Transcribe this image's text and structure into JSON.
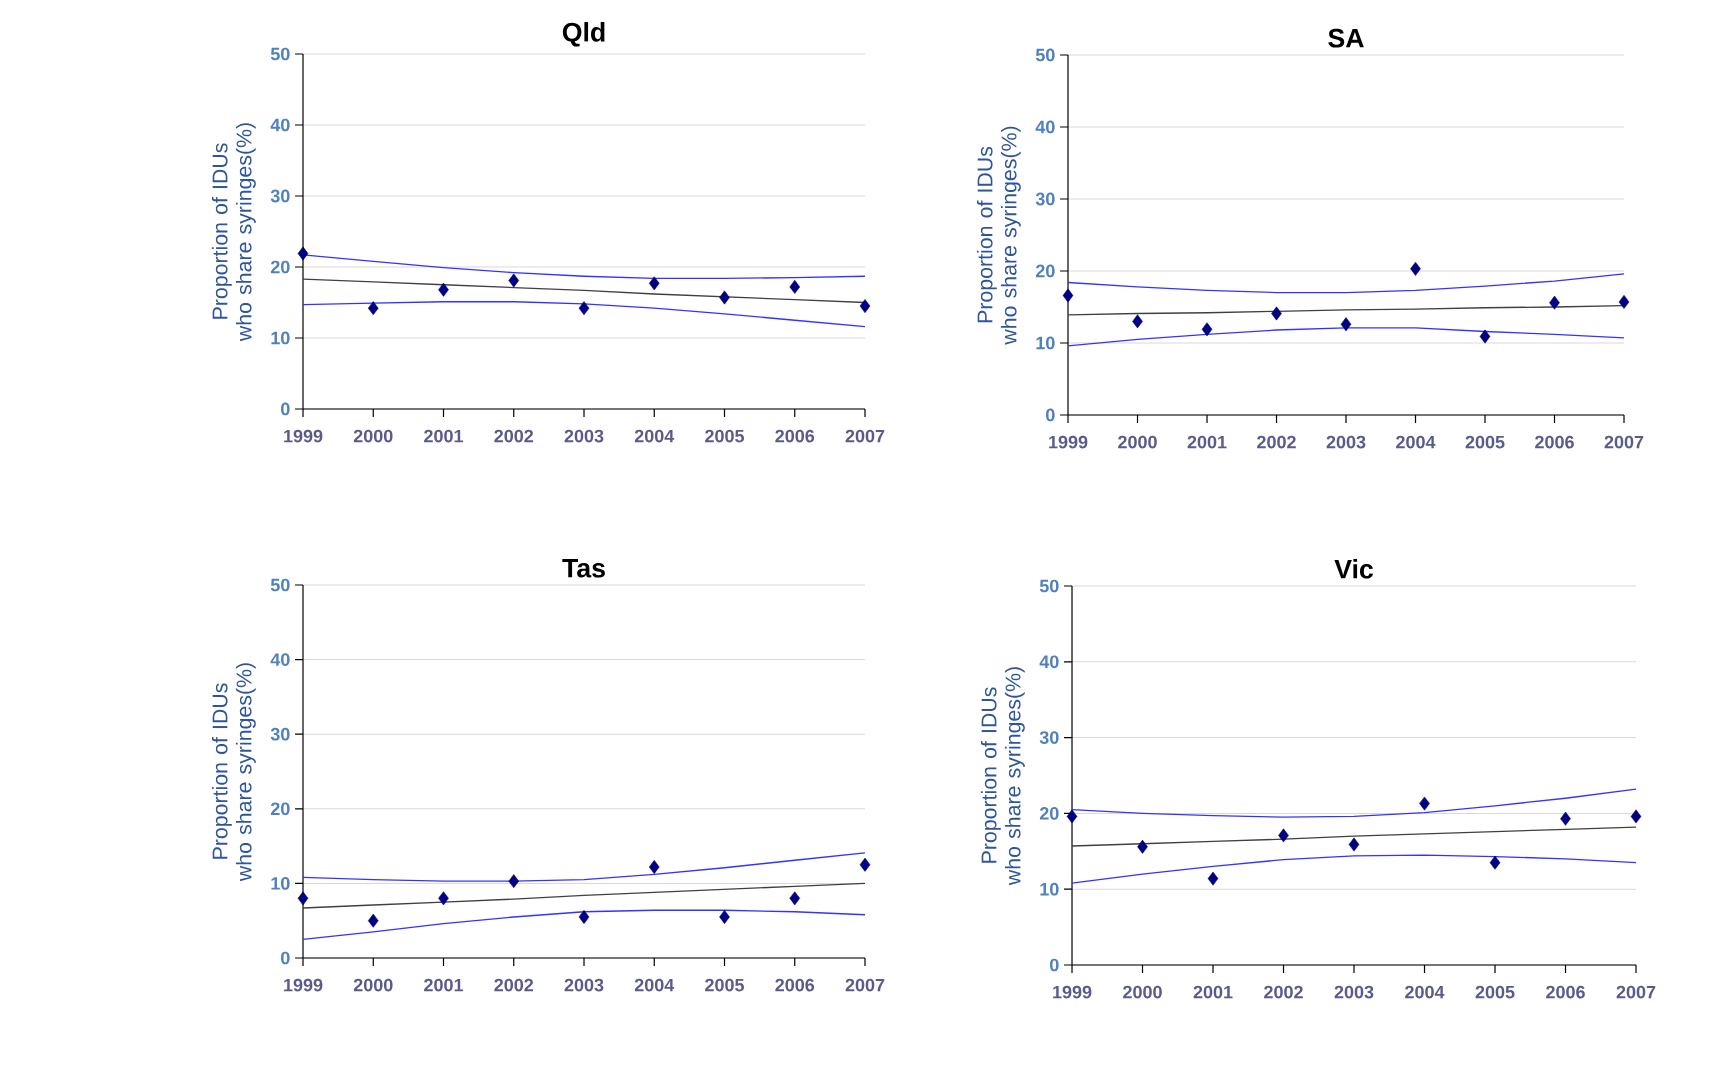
{
  "chart_data": [
    {
      "type": "scatter",
      "title": "Qld",
      "ylabel": "Proportion of IDUs who share syringes(%)",
      "x": [
        1999,
        2000,
        2001,
        2002,
        2003,
        2004,
        2005,
        2006,
        2007
      ],
      "xlim": [
        1999,
        2007
      ],
      "xticks": [
        1999,
        2000,
        2001,
        2002,
        2003,
        2004,
        2005,
        2006,
        2007
      ],
      "ylim": [
        0,
        50
      ],
      "yticks": [
        0,
        10,
        20,
        30,
        40,
        50
      ],
      "grid": "y",
      "marker": "diamond",
      "series": [
        {
          "color": "#000080",
          "values": [
            21.9,
            14.2,
            16.8,
            18.1,
            14.2,
            17.7,
            15.7,
            17.2,
            14.5
          ]
        },
        {
          "type": "line",
          "color": "#404040",
          "marker": "none",
          "values": [
            18.3,
            17.9,
            17.5,
            17.1,
            16.7,
            16.2,
            15.8,
            15.4,
            15.0
          ]
        },
        {
          "type": "line",
          "color": "#3333ff",
          "marker": "none",
          "values": [
            21.7,
            20.8,
            19.9,
            19.2,
            18.7,
            18.4,
            18.4,
            18.5,
            18.7
          ]
        },
        {
          "type": "line",
          "color": "#3333ff",
          "marker": "none",
          "values": [
            14.7,
            14.9,
            15.1,
            15.1,
            14.8,
            14.2,
            13.4,
            12.5,
            11.6
          ]
        }
      ]
    },
    {
      "type": "scatter",
      "title": "SA",
      "ylabel": "Proportion of IDUs who share syringes(%)",
      "x": [
        1999,
        2000,
        2001,
        2002,
        2003,
        2004,
        2005,
        2006,
        2007
      ],
      "xlim": [
        1999,
        2007
      ],
      "xticks": [
        1999,
        2000,
        2001,
        2002,
        2003,
        2004,
        2005,
        2006,
        2007
      ],
      "ylim": [
        0,
        50
      ],
      "yticks": [
        0,
        10,
        20,
        30,
        40,
        50
      ],
      "grid": "y",
      "marker": "diamond",
      "series": [
        {
          "color": "#000080",
          "values": [
            16.6,
            13.0,
            11.9,
            14.1,
            12.6,
            20.3,
            10.9,
            15.6,
            15.7
          ]
        },
        {
          "type": "line",
          "color": "#404040",
          "marker": "none",
          "values": [
            13.9,
            14.1,
            14.2,
            14.4,
            14.6,
            14.7,
            14.9,
            15.0,
            15.2
          ]
        },
        {
          "type": "line",
          "color": "#3333ff",
          "marker": "none",
          "values": [
            18.4,
            17.8,
            17.3,
            17.0,
            17.0,
            17.3,
            17.9,
            18.6,
            19.6
          ]
        },
        {
          "type": "line",
          "color": "#3333ff",
          "marker": "none",
          "values": [
            9.6,
            10.5,
            11.2,
            11.8,
            12.1,
            12.1,
            11.6,
            11.2,
            10.7
          ]
        }
      ]
    },
    {
      "type": "scatter",
      "title": "Tas",
      "ylabel": "Proportion of IDUs who share syringes(%)",
      "x": [
        1999,
        2000,
        2001,
        2002,
        2003,
        2004,
        2005,
        2006,
        2007
      ],
      "xlim": [
        1999,
        2007
      ],
      "xticks": [
        1999,
        2000,
        2001,
        2002,
        2003,
        2004,
        2005,
        2006,
        2007
      ],
      "ylim": [
        0,
        50
      ],
      "yticks": [
        0,
        10,
        20,
        30,
        40,
        50
      ],
      "grid": "y",
      "marker": "diamond",
      "series": [
        {
          "color": "#000080",
          "values": [
            8.0,
            5.0,
            8.0,
            10.3,
            5.5,
            12.2,
            5.5,
            8.0,
            12.5
          ]
        },
        {
          "type": "line",
          "color": "#404040",
          "marker": "none",
          "values": [
            6.7,
            7.1,
            7.5,
            7.9,
            8.4,
            8.8,
            9.2,
            9.6,
            10.0
          ]
        },
        {
          "type": "line",
          "color": "#3333ff",
          "marker": "none",
          "values": [
            10.8,
            10.5,
            10.3,
            10.3,
            10.5,
            11.2,
            12.1,
            13.1,
            14.1
          ]
        },
        {
          "type": "line",
          "color": "#3333ff",
          "marker": "none",
          "values": [
            2.5,
            3.5,
            4.6,
            5.5,
            6.2,
            6.4,
            6.4,
            6.2,
            5.8
          ]
        }
      ]
    },
    {
      "type": "scatter",
      "title": "Vic",
      "ylabel": "Proportion of IDUs who share syringes(%)",
      "x": [
        1999,
        2000,
        2001,
        2002,
        2003,
        2004,
        2005,
        2006,
        2007
      ],
      "xlim": [
        1999,
        2007
      ],
      "xticks": [
        1999,
        2000,
        2001,
        2002,
        2003,
        2004,
        2005,
        2006,
        2007
      ],
      "ylim": [
        0,
        50
      ],
      "yticks": [
        0,
        10,
        20,
        30,
        40,
        50
      ],
      "grid": "y",
      "marker": "diamond",
      "series": [
        {
          "color": "#000080",
          "values": [
            19.6,
            15.6,
            11.4,
            17.1,
            15.9,
            21.3,
            13.5,
            19.3,
            19.6
          ]
        },
        {
          "type": "line",
          "color": "#404040",
          "marker": "none",
          "values": [
            15.7,
            16.0,
            16.3,
            16.6,
            17.0,
            17.3,
            17.6,
            17.9,
            18.2
          ]
        },
        {
          "type": "line",
          "color": "#3333ff",
          "marker": "none",
          "values": [
            20.5,
            20.0,
            19.7,
            19.5,
            19.6,
            20.1,
            21.0,
            22.0,
            23.2
          ]
        },
        {
          "type": "line",
          "color": "#3333ff",
          "marker": "none",
          "values": [
            10.8,
            12.0,
            13.0,
            13.9,
            14.4,
            14.5,
            14.3,
            14.0,
            13.5
          ]
        }
      ]
    }
  ]
}
